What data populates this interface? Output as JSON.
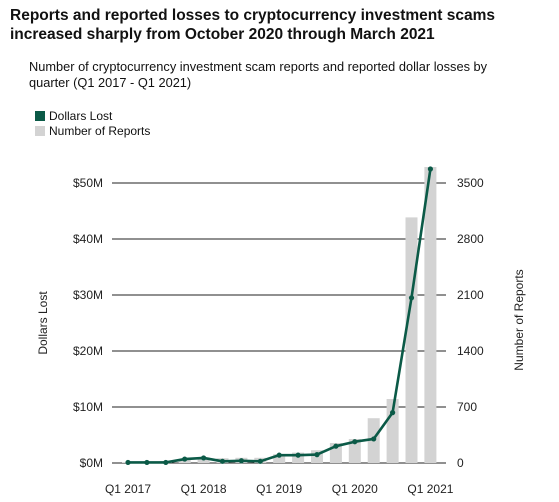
{
  "header": {
    "title": "Reports and reported losses to cryptocurrency investment scams increased sharply from October 2020 through March 2021",
    "subtitle": "Number of cryptocurrency investment scam reports and reported dollar losses by quarter (Q1 2017 - Q1 2021)"
  },
  "legend": {
    "line_label": "Dollars Lost",
    "bar_label": "Number of Reports"
  },
  "colors": {
    "line": "#0b5a47",
    "bar": "#d3d3d3",
    "grid": "#222222"
  },
  "chart_data": {
    "type": "bar+line",
    "title": "Reports and reported losses to cryptocurrency investment scams increased sharply from October 2020 through March 2021",
    "subtitle": "Number of cryptocurrency investment scam reports and reported dollar losses by quarter (Q1 2017 - Q1 2021)",
    "categories": [
      "Q1 2017",
      "Q2 2017",
      "Q3 2017",
      "Q4 2017",
      "Q1 2018",
      "Q2 2018",
      "Q3 2018",
      "Q4 2018",
      "Q1 2019",
      "Q2 2019",
      "Q3 2019",
      "Q4 2019",
      "Q1 2020",
      "Q2 2020",
      "Q3 2020",
      "Q4 2020",
      "Q1 2021"
    ],
    "x_tick_labels": [
      "Q1 2017",
      "Q1 2018",
      "Q1 2019",
      "Q1 2020",
      "Q1 2021"
    ],
    "series": [
      {
        "name": "Number of Reports",
        "type": "bar",
        "axis": "right",
        "values": [
          10,
          15,
          25,
          50,
          70,
          60,
          65,
          65,
          110,
          130,
          160,
          250,
          300,
          560,
          800,
          3070,
          3700
        ]
      },
      {
        "name": "Dollars Lost",
        "type": "line",
        "axis": "left",
        "values": [
          0.1,
          0.1,
          0.1,
          0.7,
          0.9,
          0.3,
          0.4,
          0.3,
          1.4,
          1.4,
          1.5,
          3.0,
          3.8,
          4.3,
          9.0,
          29.5,
          52.5
        ]
      }
    ],
    "ylabel": "Dollars Lost",
    "y_tick_labels": [
      "$0M",
      "$10M",
      "$20M",
      "$30M",
      "$40M",
      "$50M"
    ],
    "ylim": [
      0,
      50
    ],
    "y2label": "Number of Reports",
    "y2_tick_labels": [
      "0",
      "700",
      "1400",
      "2100",
      "2800",
      "3500"
    ],
    "y2lim": [
      0,
      3500
    ],
    "grid": true,
    "legend_position": "top-left"
  }
}
